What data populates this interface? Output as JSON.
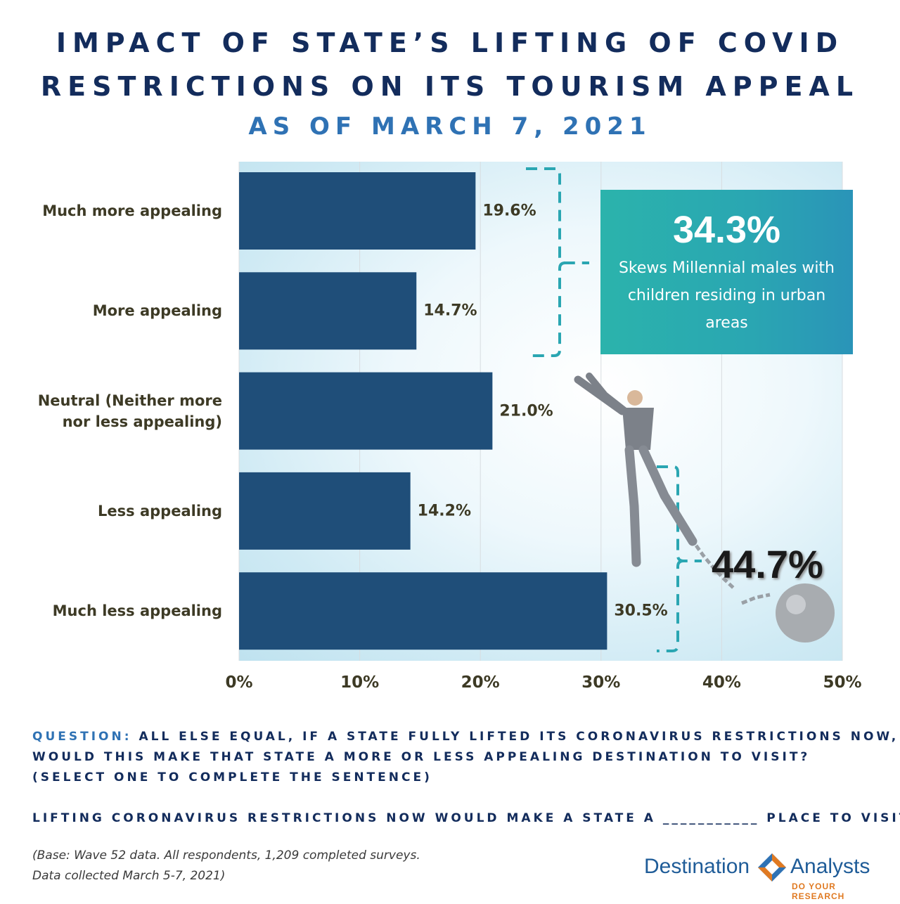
{
  "title": {
    "line1": "IMPACT OF STATE’S LIFTING OF COVID",
    "line2": "RESTRICTIONS ON ITS TOURISM APPEAL",
    "line3": "AS OF MARCH 7, 2021"
  },
  "chart_data": {
    "type": "bar",
    "orientation": "horizontal",
    "categories": [
      "Much more appealing",
      "More appealing",
      "Neutral (Neither more nor less appealing)",
      "Less appealing",
      "Much less appealing"
    ],
    "values": [
      19.6,
      14.7,
      21.0,
      14.2,
      30.5
    ],
    "value_labels": [
      "19.6%",
      "14.7%",
      "21.0%",
      "14.2%",
      "30.5%"
    ],
    "xlim": [
      0,
      50
    ],
    "xticks": [
      "0%",
      "10%",
      "20%",
      "30%",
      "40%",
      "50%"
    ],
    "grid": "vertical",
    "bar_color": "#1f4e79",
    "annotations": {
      "top_group": {
        "value": "34.3%",
        "text": "Skews Millennial males with children residing in urban areas"
      },
      "bottom_group": {
        "value": "44.7%"
      }
    }
  },
  "question": {
    "prefix": "QUESTION:",
    "line1": "ALL ELSE EQUAL, IF A STATE FULLY LIFTED ITS CORONAVIRUS RESTRICTIONS NOW,",
    "line2": "WOULD THIS MAKE THAT STATE A MORE OR LESS APPEALING DESTINATION TO VISIT?",
    "line3": "(SELECT ONE TO COMPLETE THE SENTENCE)",
    "sentence": "LIFTING CORONAVIRUS RESTRICTIONS NOW WOULD MAKE A STATE A ___________ PLACE TO VISIT"
  },
  "base_note": {
    "line1": "(Base: Wave 52 data. All respondents, 1,209 completed surveys.",
    "line2": "Data collected March 5-7, 2021)"
  },
  "brand": {
    "name_left": "Destination",
    "name_right": "Analysts",
    "tagline": "DO YOUR RESEARCH"
  },
  "colors": {
    "title": "#132c5c",
    "subtitle": "#2f72b4",
    "bar": "#1f4e79",
    "callout": "#2aa6b2",
    "bracket": "#2aa6b2"
  }
}
